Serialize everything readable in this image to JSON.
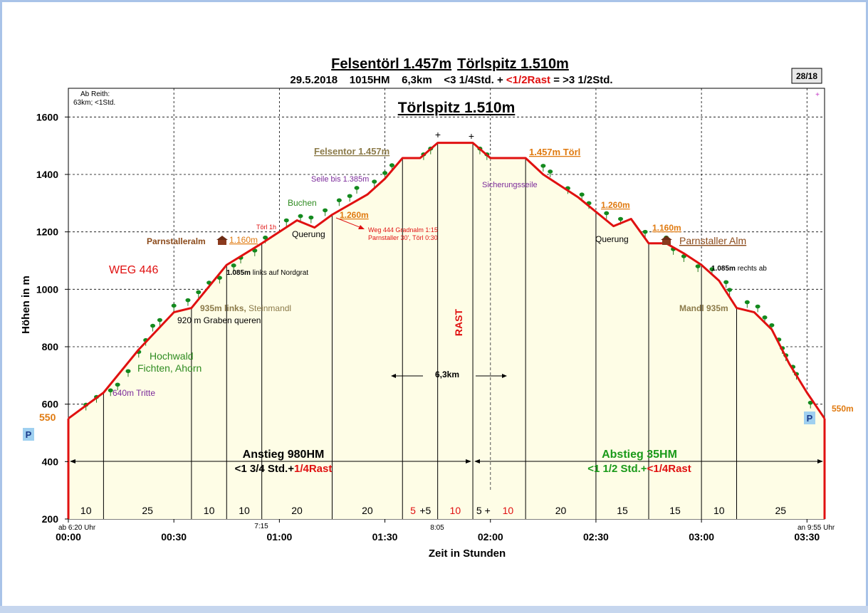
{
  "page_badge": "28/18",
  "chart_data": {
    "type": "area",
    "title_part1": "Felsentörl 1.457m",
    "title_part2": "Törlspitz 1.510m",
    "subtitle_a": "29.5.2018    1015HM    6,3km    <3 1/4Std. + ",
    "subtitle_b": "<1/2Rast",
    "subtitle_c": " = >3 1/2Std.",
    "summit_title": "Törlspitz 1.510m",
    "xlabel": "Zeit in Stunden",
    "ylabel": "Höhen in m",
    "ylim": [
      200,
      1700
    ],
    "xlim": [
      0,
      215
    ],
    "y_ticks": [
      200,
      400,
      600,
      800,
      1000,
      1200,
      1400,
      1600
    ],
    "x_ticks": [
      {
        "t": 0,
        "label": "00:00"
      },
      {
        "t": 30,
        "label": "00:30"
      },
      {
        "t": 60,
        "label": "01:00"
      },
      {
        "t": 90,
        "label": "01:30"
      },
      {
        "t": 120,
        "label": "02:00"
      },
      {
        "t": 150,
        "label": "02:30"
      },
      {
        "t": 180,
        "label": "03:00"
      },
      {
        "t": 210,
        "label": "03:30"
      }
    ],
    "grid": true,
    "fill_color": "#fefde6",
    "line_color": "#e01010",
    "profile": [
      [
        0,
        550
      ],
      [
        10,
        640
      ],
      [
        20,
        790
      ],
      [
        30,
        920
      ],
      [
        35,
        935
      ],
      [
        45,
        1085
      ],
      [
        55,
        1160
      ],
      [
        65,
        1240
      ],
      [
        70,
        1215
      ],
      [
        75,
        1260
      ],
      [
        85,
        1330
      ],
      [
        90,
        1385
      ],
      [
        95,
        1457
      ],
      [
        100,
        1457
      ],
      [
        105,
        1510
      ],
      [
        115,
        1510
      ],
      [
        120,
        1457
      ],
      [
        130,
        1457
      ],
      [
        135,
        1400
      ],
      [
        145,
        1320
      ],
      [
        155,
        1220
      ],
      [
        160,
        1245
      ],
      [
        165,
        1160
      ],
      [
        170,
        1160
      ],
      [
        175,
        1125
      ],
      [
        180,
        1085
      ],
      [
        185,
        1030
      ],
      [
        190,
        935
      ],
      [
        195,
        920
      ],
      [
        200,
        860
      ],
      [
        205,
        740
      ],
      [
        210,
        640
      ],
      [
        215,
        550
      ]
    ],
    "segment_lines": [
      10,
      35,
      45,
      55,
      75,
      95,
      105,
      115,
      130,
      150,
      165,
      180,
      190,
      215
    ],
    "dashed_line": 120,
    "segment_minutes": [
      {
        "t": 5,
        "label": "10",
        "color": "#000000"
      },
      {
        "t": 22.5,
        "label": "25",
        "color": "#000000"
      },
      {
        "t": 40,
        "label": "10",
        "color": "#000000"
      },
      {
        "t": 50,
        "label": "10",
        "color": "#000000"
      },
      {
        "t": 65,
        "label": "20",
        "color": "#000000"
      },
      {
        "t": 85,
        "label": "20",
        "color": "#000000"
      },
      {
        "t": 98,
        "label": "5",
        "color": "#e01010"
      },
      {
        "t": 101.5,
        "label": "+5",
        "color": "#000000"
      },
      {
        "t": 110,
        "label": "10",
        "color": "#e01010"
      },
      {
        "t": 118,
        "label": "5  +",
        "color": "#000000"
      },
      {
        "t": 125,
        "label": "10",
        "color": "#e01010"
      },
      {
        "t": 140,
        "label": "20",
        "color": "#000000"
      },
      {
        "t": 157.5,
        "label": "15",
        "color": "#000000"
      },
      {
        "t": 172.5,
        "label": "15",
        "color": "#000000"
      },
      {
        "t": 185,
        "label": "10",
        "color": "#000000"
      },
      {
        "t": 202.5,
        "label": "25",
        "color": "#000000"
      }
    ],
    "annotations": {
      "start_note_1": "Ab Reith:",
      "start_note_2": "63km; <1Std.",
      "weg": "WEG 446",
      "hochwald_1": "Hochwald",
      "hochwald_2": "Fichten, Ahorn",
      "tritte": "640m Tritte",
      "graben": "920 m Graben queren",
      "steinmandl_a": "935m links, ",
      "steinmandl_b": "Steinmandl",
      "nordgrat_a": "1.085m",
      "nordgrat_b": " links auf Nordgrat",
      "parnstalleralm_left": "Parnstalleralm",
      "alt_1160_left": "1.160m",
      "toerl_1h": "Törl 1h",
      "buchen": "Buchen",
      "querung_left": "Querung",
      "alt_1260_left": "1.260m",
      "weg444_1": "Weg 444 Gradnalm 1:15",
      "weg444_2": "Parnstaller 30', Törl 0:30",
      "seile": "Seile bis 1.385m",
      "felsentor": "Felsentor 1.457m",
      "rast": "RAST",
      "sicherungsseile": "Sicherungsseile",
      "toerl_1457": "1.457m Törl",
      "alt_1260_right": "1.260m",
      "querung_right": "Querung",
      "alt_1160_right": "1.160m",
      "parnstaller_alm_right": "Parnstaller Alm",
      "rechts_a": "1.085m",
      "rechts_b": " rechts ab",
      "mandl": "Mandl 935m",
      "distance": "6,3km",
      "time_715": "7:15",
      "time_805": "8:05",
      "start_time": "ab 6:20 Uhr",
      "end_time": "an 9:55 Uhr",
      "alt_550_left": "550",
      "alt_550_right": "550m",
      "parking": "P",
      "anstieg_1": "Anstieg 980HM",
      "anstieg_2a": "<1 3/4 Std.+",
      "anstieg_2b": "1/4Rast",
      "abstieg_1": "Abstieg 35HM",
      "abstieg_2a": "<1 1/2 Std.+",
      "abstieg_2b": "<1/4Rast",
      "summit_mark": "+",
      "corner_mark": "+"
    },
    "trees": [
      [
        5,
        598
      ],
      [
        8,
        625
      ],
      [
        12,
        648
      ],
      [
        14,
        668
      ],
      [
        17,
        715
      ],
      [
        20,
        782
      ],
      [
        22,
        823
      ],
      [
        24,
        873
      ],
      [
        26,
        893
      ],
      [
        30,
        943
      ],
      [
        34,
        962
      ],
      [
        37,
        990
      ],
      [
        40,
        1023
      ],
      [
        43,
        1040
      ],
      [
        47,
        1083
      ],
      [
        49,
        1110
      ],
      [
        53,
        1135
      ],
      [
        56,
        1180
      ],
      [
        62,
        1240
      ],
      [
        66,
        1255
      ],
      [
        69,
        1250
      ],
      [
        73,
        1275
      ],
      [
        77,
        1310
      ],
      [
        80,
        1325
      ],
      [
        82,
        1353
      ],
      [
        87,
        1375
      ],
      [
        90,
        1405
      ],
      [
        92,
        1432
      ],
      [
        101,
        1470
      ],
      [
        103,
        1490
      ],
      [
        117,
        1490
      ],
      [
        119,
        1470
      ],
      [
        135,
        1430
      ],
      [
        137,
        1410
      ],
      [
        142,
        1352
      ],
      [
        146,
        1330
      ],
      [
        148,
        1300
      ],
      [
        153,
        1265
      ],
      [
        157,
        1245
      ],
      [
        164,
        1200
      ],
      [
        170,
        1180
      ],
      [
        172,
        1140
      ],
      [
        175,
        1115
      ],
      [
        179,
        1080
      ],
      [
        183,
        1070
      ],
      [
        187,
        1025
      ],
      [
        188,
        998
      ],
      [
        193,
        955
      ],
      [
        196,
        940
      ],
      [
        198,
        902
      ],
      [
        200,
        875
      ],
      [
        202,
        825
      ],
      [
        203,
        795
      ],
      [
        204,
        770
      ],
      [
        206,
        730
      ],
      [
        207,
        705
      ],
      [
        211,
        605
      ]
    ]
  }
}
